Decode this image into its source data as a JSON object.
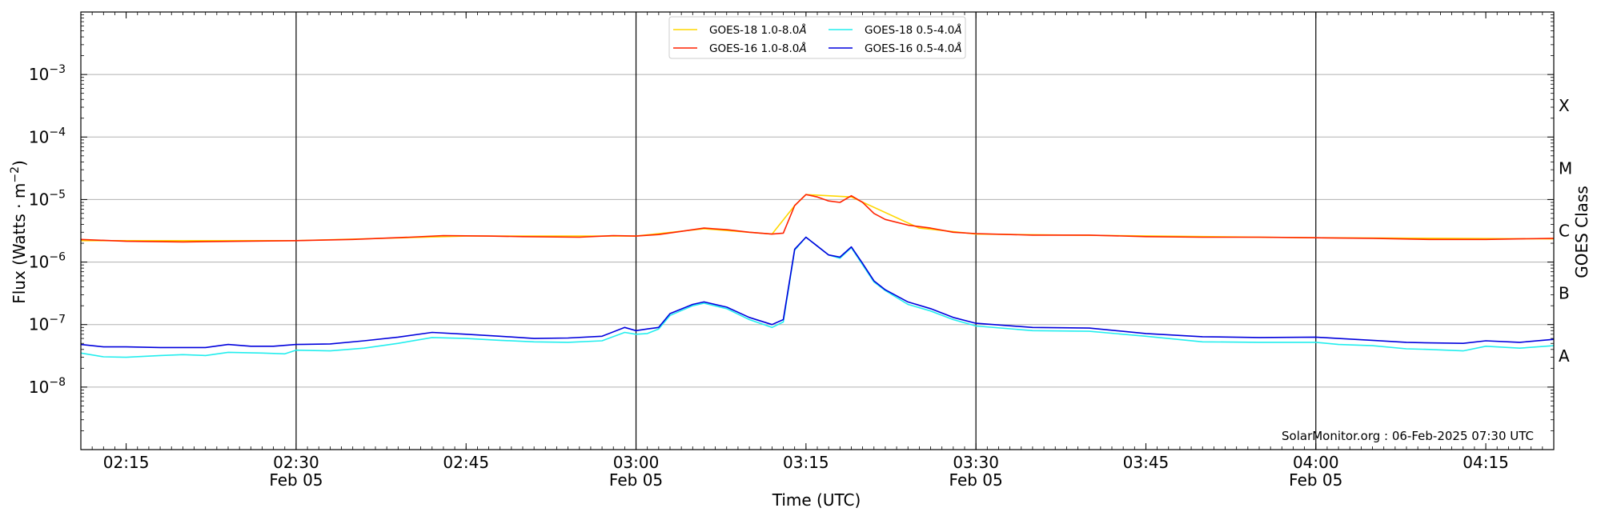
{
  "chart_data": {
    "type": "line",
    "xlabel": "Time (UTC)",
    "ylabel": "Flux (Watts · m",
    "ylabel_sup": "−2",
    "ylabel_close": ")",
    "right_axis_label": "GOES Class",
    "log_scale_y": true,
    "ylim": [
      1e-09,
      0.01
    ],
    "xlim": [
      "02:11",
      "04:21"
    ],
    "y_ticks": [
      {
        "value": 1e-08,
        "base": "10",
        "exp": "−8"
      },
      {
        "value": 1e-07,
        "base": "10",
        "exp": "−7"
      },
      {
        "value": 1e-06,
        "base": "10",
        "exp": "−6"
      },
      {
        "value": 1e-05,
        "base": "10",
        "exp": "−5"
      },
      {
        "value": 0.0001,
        "base": "10",
        "exp": "−4"
      },
      {
        "value": 0.001,
        "base": "10",
        "exp": "−3"
      }
    ],
    "x_ticks": [
      {
        "time": "02:15",
        "label": "02:15",
        "sublabel": ""
      },
      {
        "time": "02:30",
        "label": "02:30",
        "sublabel": "Feb 05"
      },
      {
        "time": "02:45",
        "label": "02:45",
        "sublabel": ""
      },
      {
        "time": "03:00",
        "label": "03:00",
        "sublabel": "Feb 05"
      },
      {
        "time": "03:15",
        "label": "03:15",
        "sublabel": ""
      },
      {
        "time": "03:30",
        "label": "03:30",
        "sublabel": "Feb 05"
      },
      {
        "time": "03:45",
        "label": "03:45",
        "sublabel": ""
      },
      {
        "time": "04:00",
        "label": "04:00",
        "sublabel": "Feb 05"
      },
      {
        "time": "04:15",
        "label": "04:15",
        "sublabel": ""
      }
    ],
    "vertical_lines": [
      "02:30",
      "03:00",
      "03:30",
      "04:00"
    ],
    "horizontal_gridlines": [
      1e-08,
      1e-07,
      1e-06,
      1e-05,
      0.0001,
      0.001
    ],
    "goes_classes": [
      {
        "label": "A",
        "value": 3.16e-08
      },
      {
        "label": "B",
        "value": 3.16e-07
      },
      {
        "label": "C",
        "value": 3.16e-06
      },
      {
        "label": "M",
        "value": 3.16e-05
      },
      {
        "label": "X",
        "value": 0.000316
      }
    ],
    "legend": {
      "placement": "top-center",
      "columns": 2,
      "entries": [
        {
          "name": "GOES-18 1.0-8.0",
          "unit": "Å",
          "color": "#ffd700",
          "series": 0
        },
        {
          "name": "GOES-16 1.0-8.0",
          "unit": "Å",
          "color": "#ff2200",
          "series": 1
        },
        {
          "name": "GOES-18 0.5-4.0",
          "unit": "Å",
          "color": "#22eeee",
          "series": 2
        },
        {
          "name": "GOES-16 0.5-4.0",
          "unit": "Å",
          "color": "#0000dd",
          "series": 3
        }
      ]
    },
    "series": [
      {
        "name": "GOES-18 1.0-8.0",
        "color": "#ffd700",
        "x": [
          "02:11",
          "02:30",
          "02:45",
          "03:00",
          "03:06",
          "03:12",
          "03:14",
          "03:15",
          "03:19",
          "03:25",
          "03:30",
          "04:00",
          "04:21"
        ],
        "y": [
          2.2e-06,
          2.2e-06,
          2.6e-06,
          2.6e-06,
          3.4e-06,
          2.8e-06,
          8e-06,
          1.2e-05,
          1.1e-05,
          3.5e-06,
          2.8e-06,
          2.45e-06,
          2.35e-06
        ]
      },
      {
        "name": "GOES-16 1.0-8.0",
        "color": "#ff2200",
        "x": [
          "02:11",
          "02:15",
          "02:20",
          "02:25",
          "02:30",
          "02:35",
          "02:40",
          "02:43",
          "02:47",
          "02:50",
          "02:55",
          "02:58",
          "03:00",
          "03:02",
          "03:04",
          "03:06",
          "03:08",
          "03:10",
          "03:12",
          "03:13",
          "03:14",
          "03:15",
          "03:16",
          "03:17",
          "03:18",
          "03:19",
          "03:20",
          "03:21",
          "03:22",
          "03:24",
          "03:26",
          "03:28",
          "03:30",
          "03:35",
          "03:40",
          "03:45",
          "03:50",
          "03:55",
          "04:00",
          "04:05",
          "04:10",
          "04:15",
          "04:21"
        ],
        "y": [
          2.3e-06,
          2.15e-06,
          2.1e-06,
          2.15e-06,
          2.2e-06,
          2.3e-06,
          2.5e-06,
          2.65e-06,
          2.6e-06,
          2.55e-06,
          2.5e-06,
          2.65e-06,
          2.6e-06,
          2.75e-06,
          3.1e-06,
          3.5e-06,
          3.3e-06,
          3e-06,
          2.8e-06,
          2.9e-06,
          8e-06,
          1.2e-05,
          1.1e-05,
          9.5e-06,
          9e-06,
          1.15e-05,
          9e-06,
          6e-06,
          4.8e-06,
          3.9e-06,
          3.5e-06,
          3e-06,
          2.85e-06,
          2.7e-06,
          2.7e-06,
          2.55e-06,
          2.5e-06,
          2.5e-06,
          2.45e-06,
          2.4e-06,
          2.3e-06,
          2.3e-06,
          2.4e-06
        ]
      },
      {
        "name": "GOES-18 0.5-4.0",
        "color": "#22eeee",
        "x": [
          "02:11",
          "02:13",
          "02:15",
          "02:18",
          "02:20",
          "02:22",
          "02:24",
          "02:27",
          "02:29",
          "02:30",
          "02:33",
          "02:36",
          "02:39",
          "02:42",
          "02:45",
          "02:48",
          "02:51",
          "02:54",
          "02:57",
          "02:59",
          "03:00",
          "03:01",
          "03:02",
          "03:03",
          "03:05",
          "03:06",
          "03:08",
          "03:10",
          "03:12",
          "03:13",
          "03:14",
          "03:15",
          "03:17",
          "03:18",
          "03:19",
          "03:20",
          "03:21",
          "03:22",
          "03:24",
          "03:26",
          "03:28",
          "03:30",
          "03:35",
          "03:40",
          "03:45",
          "03:50",
          "03:55",
          "04:00",
          "04:02",
          "04:05",
          "04:08",
          "04:10",
          "04:13",
          "04:15",
          "04:18",
          "04:21"
        ],
        "y": [
          3.5e-08,
          3.05e-08,
          3e-08,
          3.2e-08,
          3.3e-08,
          3.2e-08,
          3.6e-08,
          3.5e-08,
          3.4e-08,
          3.9e-08,
          3.8e-08,
          4.2e-08,
          5e-08,
          6.2e-08,
          6e-08,
          5.6e-08,
          5.3e-08,
          5.2e-08,
          5.5e-08,
          7.5e-08,
          7e-08,
          7.2e-08,
          8.5e-08,
          1.4e-07,
          2e-07,
          2.2e-07,
          1.8e-07,
          1.2e-07,
          9e-08,
          1.1e-07,
          1.55e-06,
          2.5e-06,
          1.3e-06,
          1.15e-06,
          1.7e-06,
          9e-07,
          4.8e-07,
          3.5e-07,
          2.1e-07,
          1.65e-07,
          1.2e-07,
          9.5e-08,
          8e-08,
          7.8e-08,
          6.5e-08,
          5.3e-08,
          5.2e-08,
          5.2e-08,
          4.8e-08,
          4.6e-08,
          4.1e-08,
          4e-08,
          3.8e-08,
          4.5e-08,
          4.2e-08,
          4.6e-08
        ]
      },
      {
        "name": "GOES-16 0.5-4.0",
        "color": "#0000dd",
        "x": [
          "02:11",
          "02:13",
          "02:15",
          "02:18",
          "02:20",
          "02:22",
          "02:24",
          "02:26",
          "02:28",
          "02:30",
          "02:33",
          "02:36",
          "02:39",
          "02:42",
          "02:45",
          "02:48",
          "02:51",
          "02:54",
          "02:57",
          "02:59",
          "03:00",
          "03:01",
          "03:02",
          "03:03",
          "03:05",
          "03:06",
          "03:08",
          "03:10",
          "03:12",
          "03:13",
          "03:14",
          "03:15",
          "03:17",
          "03:18",
          "03:19",
          "03:20",
          "03:21",
          "03:22",
          "03:24",
          "03:26",
          "03:28",
          "03:30",
          "03:35",
          "03:40",
          "03:45",
          "03:50",
          "03:55",
          "04:00",
          "04:02",
          "04:05",
          "04:08",
          "04:10",
          "04:13",
          "04:15",
          "04:18",
          "04:21"
        ],
        "y": [
          4.8e-08,
          4.4e-08,
          4.4e-08,
          4.3e-08,
          4.3e-08,
          4.3e-08,
          4.8e-08,
          4.5e-08,
          4.5e-08,
          4.8e-08,
          4.9e-08,
          5.5e-08,
          6.3e-08,
          7.5e-08,
          7e-08,
          6.5e-08,
          6e-08,
          6.1e-08,
          6.5e-08,
          9e-08,
          8e-08,
          8.5e-08,
          9e-08,
          1.5e-07,
          2.1e-07,
          2.3e-07,
          1.9e-07,
          1.3e-07,
          1e-07,
          1.2e-07,
          1.6e-06,
          2.5e-06,
          1.3e-06,
          1.2e-06,
          1.75e-06,
          9.5e-07,
          5e-07,
          3.6e-07,
          2.3e-07,
          1.8e-07,
          1.3e-07,
          1.05e-07,
          9e-08,
          8.8e-08,
          7.2e-08,
          6.4e-08,
          6.2e-08,
          6.3e-08,
          6e-08,
          5.6e-08,
          5.2e-08,
          5.1e-08,
          5e-08,
          5.5e-08,
          5.2e-08,
          5.8e-08
        ]
      }
    ],
    "annotation": "SolarMonitor.org : 06-Feb-2025 07:30 UTC"
  }
}
